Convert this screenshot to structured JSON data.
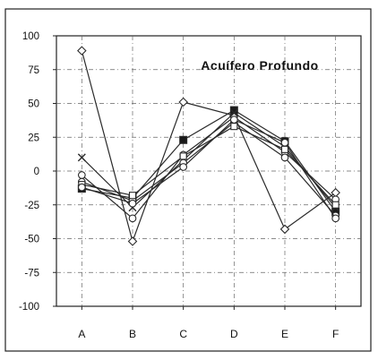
{
  "chart_data": {
    "type": "line",
    "title": "Acuífero Profundo",
    "categories": [
      "A",
      "B",
      "C",
      "D",
      "E",
      "F"
    ],
    "ylim": [
      -100,
      100
    ],
    "yticks": [
      100,
      75,
      50,
      25,
      0,
      -25,
      -50,
      -75,
      -100
    ],
    "grid": true,
    "legend": "none",
    "series": [
      {
        "marker": "diamond-open",
        "values": [
          89,
          -52,
          51,
          41,
          -43,
          -16
        ]
      },
      {
        "marker": "square-filled",
        "values": [
          -13,
          -20,
          23,
          45,
          22,
          -30
        ]
      },
      {
        "marker": "circle-open",
        "values": [
          -3,
          -35,
          12,
          40,
          14,
          -21
        ]
      },
      {
        "marker": "x",
        "values": [
          10,
          -27,
          8,
          43,
          18,
          -27
        ]
      },
      {
        "marker": "circle-open",
        "values": [
          -8,
          -22,
          6,
          36,
          10,
          -33
        ]
      },
      {
        "marker": "square-open",
        "values": [
          -10,
          -18,
          11,
          33,
          16,
          -25
        ]
      },
      {
        "marker": "circle-open",
        "values": [
          -12,
          -24,
          3,
          38,
          21,
          -35
        ]
      }
    ],
    "colors": {
      "line": "#2a2a2a",
      "grid": "#666666",
      "frame": "#222222"
    }
  }
}
